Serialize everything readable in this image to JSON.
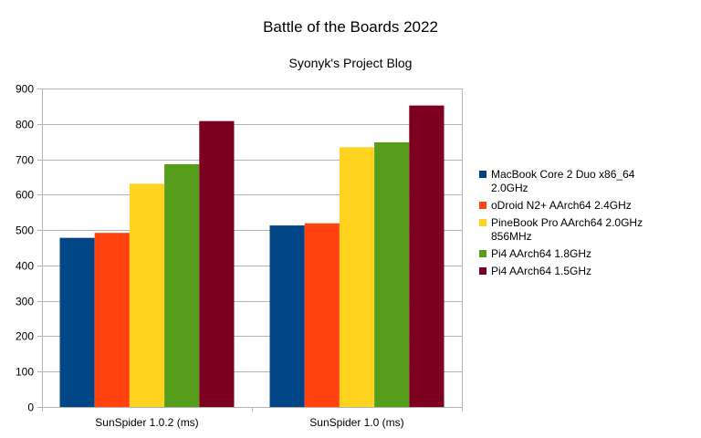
{
  "chart_data": {
    "type": "bar",
    "title": "Battle of the Boards 2022",
    "subtitle": "Syonyk's Project Blog",
    "xlabel": "",
    "ylabel": "",
    "ylim": [
      0,
      900
    ],
    "yticks": [
      0,
      100,
      200,
      300,
      400,
      500,
      600,
      700,
      800,
      900
    ],
    "grid": "horizontal",
    "legend_position": "right",
    "categories": [
      "SunSpider 1.0.2 (ms)",
      "SunSpider 1.0 (ms)"
    ],
    "series": [
      {
        "name": "MacBook Core 2 Duo x86_64 2.0GHz",
        "color": "#004586",
        "values": [
          478,
          513
        ]
      },
      {
        "name": "oDroid N2+ AArch64 2.4GHz",
        "color": "#ff420e",
        "values": [
          492,
          519
        ]
      },
      {
        "name": "PineBook Pro AArch64 2.0GHz 856MHz",
        "color": "#ffd320",
        "values": [
          631,
          734
        ]
      },
      {
        "name": "Pi4 AArch64 1.8GHz",
        "color": "#579d1c",
        "values": [
          686,
          748
        ]
      },
      {
        "name": "Pi4 AArch64 1.5GHz",
        "color": "#7e0021",
        "values": [
          808,
          852
        ]
      }
    ]
  }
}
